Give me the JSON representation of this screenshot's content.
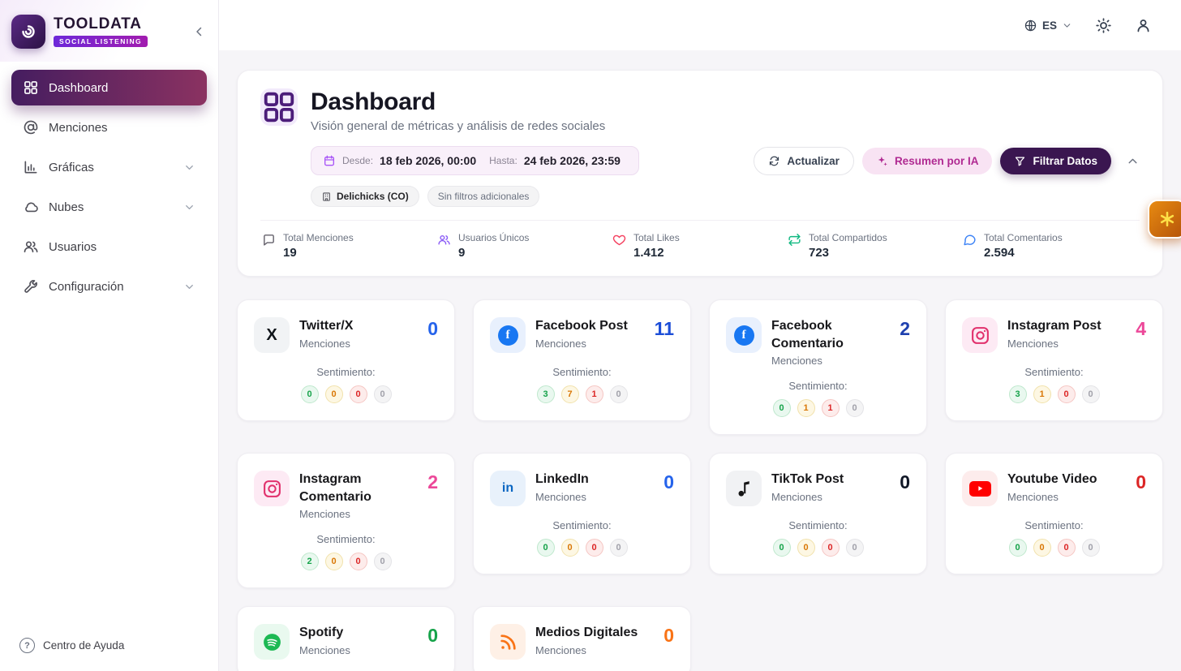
{
  "sidebar": {
    "logo": {
      "title": "TOOLDATA",
      "subtitle": "SOCIAL LISTENING"
    },
    "items": [
      {
        "label": "Dashboard",
        "icon": "grid",
        "active": true
      },
      {
        "label": "Menciones",
        "icon": "at"
      },
      {
        "label": "Gráficas",
        "icon": "chart",
        "expandable": true
      },
      {
        "label": "Nubes",
        "icon": "cloud",
        "expandable": true
      },
      {
        "label": "Usuarios",
        "icon": "users"
      },
      {
        "label": "Configuración",
        "icon": "wrench",
        "expandable": true
      }
    ],
    "help": "Centro de Ayuda"
  },
  "topbar": {
    "language": "ES"
  },
  "header": {
    "title": "Dashboard",
    "subtitle": "Visión general de métricas y análisis de redes sociales",
    "date_range": {
      "from_label": "Desde:",
      "from": "18 feb 2026, 00:00",
      "to_label": "Hasta:",
      "to": "24 feb 2026, 23:59"
    },
    "tags": [
      {
        "label": "Delichicks (CO)",
        "icon": "building",
        "bold": true
      },
      {
        "label": "Sin filtros adicionales"
      }
    ],
    "actions": {
      "refresh": "Actualizar",
      "ai": "Resumen por IA",
      "filter": "Filtrar Datos"
    },
    "stats": [
      {
        "label": "Total Menciones",
        "value": "19",
        "icon": "message",
        "color": "#64616b"
      },
      {
        "label": "Usuarios Únicos",
        "value": "9",
        "icon": "users",
        "color": "#8b5cf6"
      },
      {
        "label": "Total Likes",
        "value": "1.412",
        "icon": "heart",
        "color": "#f43f5e"
      },
      {
        "label": "Total Compartidos",
        "value": "723",
        "icon": "repeat",
        "color": "#10b981"
      },
      {
        "label": "Total Comentarios",
        "value": "2.594",
        "icon": "comment",
        "color": "#3b82f6"
      }
    ]
  },
  "labels": {
    "menciones": "Menciones",
    "sentiment": "Sentimiento:"
  },
  "cards": [
    {
      "title": "Twitter/X",
      "icon": "twitter-x",
      "icon_bg": "#f1f3f5",
      "count": "0",
      "count_color": "#2563eb",
      "sentiment": [
        "0",
        "0",
        "0",
        "0"
      ]
    },
    {
      "title": "Facebook Post",
      "icon": "facebook",
      "icon_bg": "#e8f0fd",
      "count": "11",
      "count_color": "#1d4ed8",
      "sentiment": [
        "3",
        "7",
        "1",
        "0"
      ]
    },
    {
      "title": "Facebook Comentario",
      "icon": "facebook",
      "icon_bg": "#e8f0fd",
      "count": "2",
      "count_color": "#1e40af",
      "sentiment": [
        "0",
        "1",
        "1",
        "0"
      ]
    },
    {
      "title": "Instagram Post",
      "icon": "instagram",
      "icon_bg": "#fdeaf4",
      "count": "4",
      "count_color": "#ec4899",
      "sentiment": [
        "3",
        "1",
        "0",
        "0"
      ]
    },
    {
      "title": "Instagram Comentario",
      "icon": "instagram",
      "icon_bg": "#fdeaf4",
      "count": "2",
      "count_color": "#ec4899",
      "sentiment": [
        "2",
        "0",
        "0",
        "0"
      ]
    },
    {
      "title": "LinkedIn",
      "icon": "linkedin",
      "icon_bg": "#e8f1fb",
      "count": "0",
      "count_color": "#2563eb",
      "sentiment": [
        "0",
        "0",
        "0",
        "0"
      ]
    },
    {
      "title": "TikTok Post",
      "icon": "tiktok",
      "icon_bg": "#f1f2f4",
      "count": "0",
      "count_color": "#111827",
      "sentiment": [
        "0",
        "0",
        "0",
        "0"
      ]
    },
    {
      "title": "Youtube Video",
      "icon": "youtube",
      "icon_bg": "#fdecec",
      "count": "0",
      "count_color": "#dc2626",
      "sentiment": [
        "0",
        "0",
        "0",
        "0"
      ]
    },
    {
      "title": "Spotify",
      "icon": "spotify",
      "icon_bg": "#e9f9ef",
      "count": "0",
      "count_color": "#16a34a"
    },
    {
      "title": "Medios Digitales",
      "icon": "rss",
      "icon_bg": "#fef0e6",
      "count": "0",
      "count_color": "#f97316"
    }
  ]
}
